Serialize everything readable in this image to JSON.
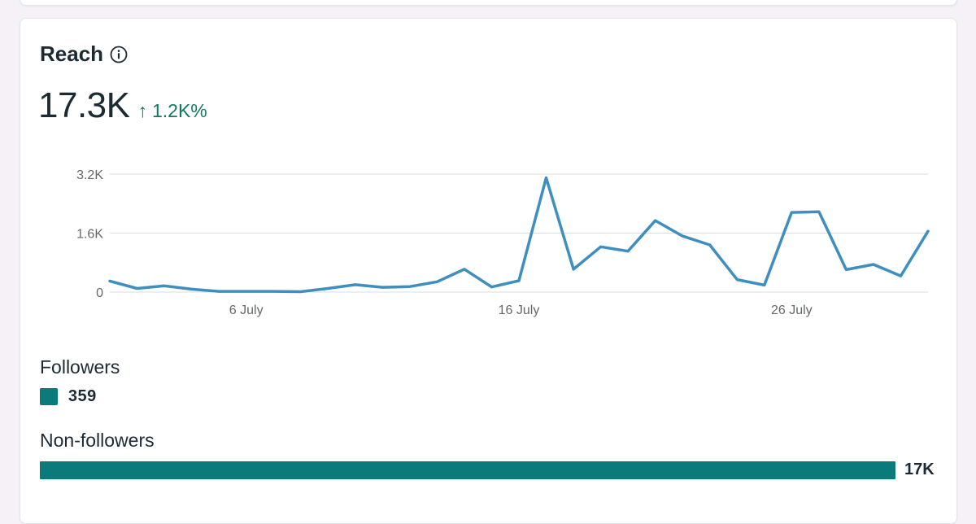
{
  "card": {
    "title": "Reach",
    "info_icon": "info-circle-icon",
    "value": "17.3K",
    "delta_arrow": "↑",
    "delta": "1.2K%",
    "delta_color": "#0f7a5a"
  },
  "chart_data": {
    "type": "line",
    "title": "",
    "xlabel": "",
    "ylabel": "",
    "x": [
      "1 July",
      "2 July",
      "3 July",
      "4 July",
      "5 July",
      "6 July",
      "7 July",
      "8 July",
      "9 July",
      "10 July",
      "11 July",
      "12 July",
      "13 July",
      "14 July",
      "15 July",
      "16 July",
      "17 July",
      "18 July",
      "19 July",
      "20 July",
      "21 July",
      "22 July",
      "23 July",
      "24 July",
      "25 July",
      "26 July",
      "27 July",
      "28 July",
      "29 July",
      "30 July",
      "31 July"
    ],
    "x_tick_labels": [
      "6 July",
      "16 July",
      "26 July"
    ],
    "y_tick_labels": [
      "0",
      "1.6K",
      "3.2K"
    ],
    "y_ticks": [
      0,
      1600,
      3200
    ],
    "ylim": [
      0,
      3200
    ],
    "series": [
      {
        "values": [
          300,
          100,
          170,
          80,
          20,
          20,
          20,
          10,
          100,
          200,
          130,
          150,
          280,
          620,
          140,
          310,
          3100,
          620,
          1230,
          1110,
          1940,
          1520,
          1280,
          340,
          190,
          2160,
          2180,
          610,
          750,
          440,
          1650
        ],
        "color": "#3e8fc0"
      }
    ],
    "grid": true
  },
  "followers": {
    "label": "Followers",
    "value": "359",
    "fraction": 0.0208,
    "color": "#0b7a7a"
  },
  "non_followers": {
    "label": "Non-followers",
    "value": "17K",
    "fraction": 1.0,
    "color": "#0b7a7a"
  }
}
